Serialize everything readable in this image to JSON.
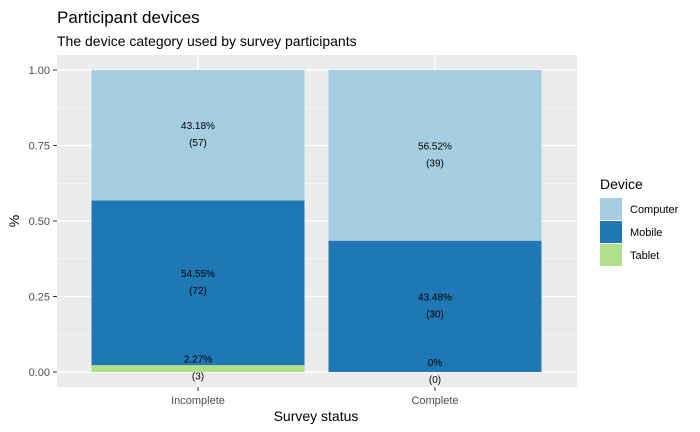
{
  "chart_data": {
    "type": "bar",
    "stacked": true,
    "title": "Participant devices",
    "subtitle": "The device category used by survey participants",
    "xlabel": "Survey status",
    "ylabel": "%",
    "categories": [
      "Incomplete",
      "Complete"
    ],
    "ylim": [
      0,
      1
    ],
    "yticks": [
      "0.00",
      "0.25",
      "0.50",
      "0.75",
      "1.00"
    ],
    "ytick_values": [
      0,
      0.25,
      0.5,
      0.75,
      1.0
    ],
    "grid": true,
    "legend": {
      "title": "Device",
      "position": "right"
    },
    "series": [
      {
        "name": "Tablet",
        "color": "#b2df8a",
        "values": [
          0.0227,
          0.0
        ],
        "labels": [
          "2.27%",
          "0%"
        ],
        "counts": [
          "(3)",
          "(0)"
        ]
      },
      {
        "name": "Mobile",
        "color": "#1f78b4",
        "values": [
          0.5455,
          0.4348
        ],
        "labels": [
          "54.55%",
          "43.48%"
        ],
        "counts": [
          "(72)",
          "(30)"
        ]
      },
      {
        "name": "Computer",
        "color": "#a6cee3",
        "values": [
          0.4318,
          0.5652
        ],
        "labels": [
          "43.18%",
          "56.52%"
        ],
        "counts": [
          "(57)",
          "(39)"
        ]
      }
    ],
    "legend_order": [
      "Computer",
      "Mobile",
      "Tablet"
    ]
  }
}
